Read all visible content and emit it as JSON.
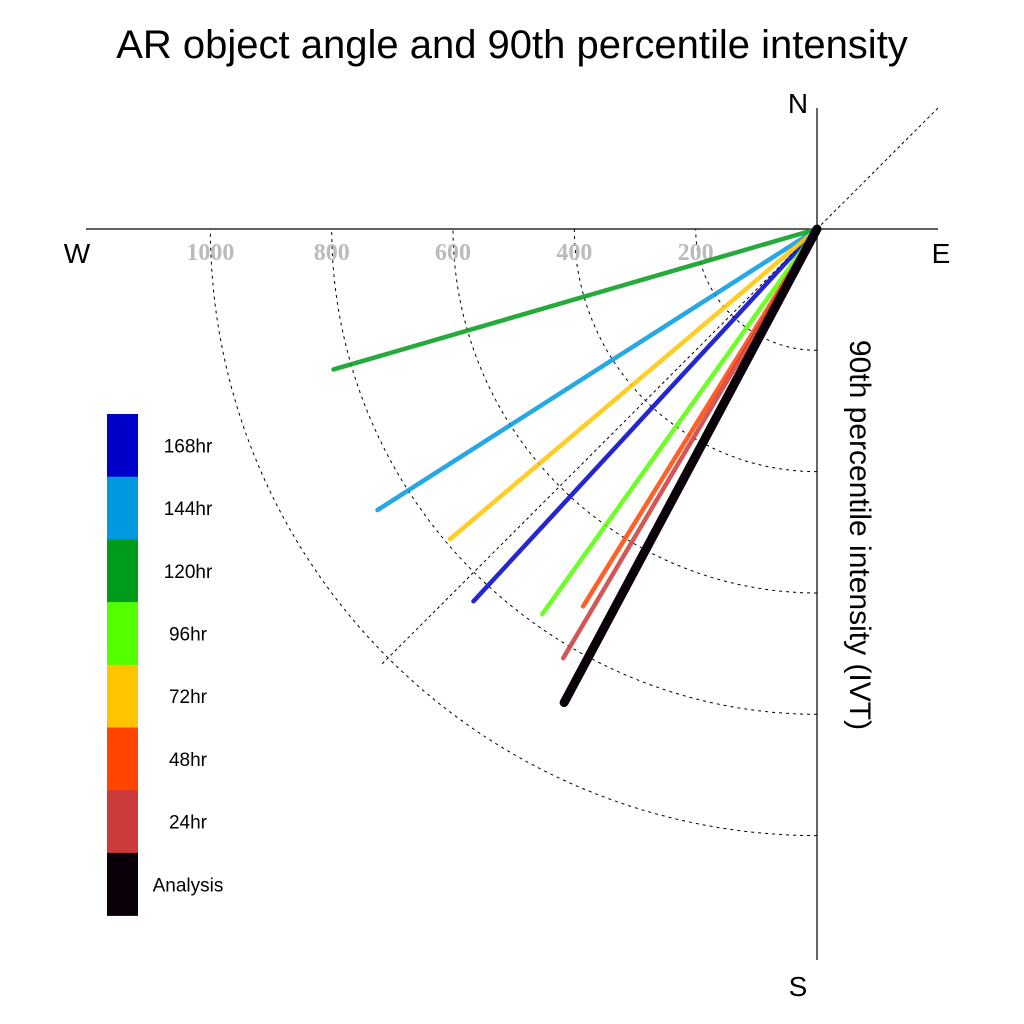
{
  "chart_data": {
    "type": "polar-vector",
    "title": "AR object angle and 90th percentile intensity",
    "radial_label": "90th percentile intensity (IVT)",
    "compass": {
      "N": "N",
      "S": "S",
      "E": "E",
      "W": "W"
    },
    "radial_ticks": [
      200,
      400,
      600,
      800,
      1000
    ],
    "radial_max": 1200,
    "angle_convention": "degrees clockwise from North",
    "series": [
      {
        "name": "168hr",
        "color": "#0000c8",
        "angle": 222.7,
        "intensity": 835
      },
      {
        "name": "144hr",
        "color": "#0099e0",
        "angle": 237.4,
        "intensity": 860
      },
      {
        "name": "120hr",
        "color": "#009b1a",
        "angle": 253.8,
        "intensity": 830
      },
      {
        "name": "96hr",
        "color": "#55ff00",
        "angle": 215.5,
        "intensity": 780
      },
      {
        "name": "72hr",
        "color": "#ffc400",
        "angle": 229.8,
        "intensity": 792
      },
      {
        "name": "48hr",
        "color": "#ff4400",
        "angle": 211.8,
        "intensity": 732
      },
      {
        "name": "24hr",
        "color": "#cc3a3a",
        "angle": 210.6,
        "intensity": 822
      },
      {
        "name": "Analysis",
        "color": "#0a000a",
        "angle": 208.1,
        "intensity": 885
      }
    ],
    "legend": [
      {
        "label": "168hr",
        "color": "#0000c8"
      },
      {
        "label": "144hr",
        "color": "#0099e0"
      },
      {
        "label": "120hr",
        "color": "#009b1a"
      },
      {
        "label": "96hr",
        "color": "#55ff00"
      },
      {
        "label": "72hr",
        "color": "#ffc400"
      },
      {
        "label": "48hr",
        "color": "#ff4400"
      },
      {
        "label": "24hr",
        "color": "#cc3a3a"
      },
      {
        "label": "Analysis",
        "color": "#0a000a"
      }
    ]
  }
}
